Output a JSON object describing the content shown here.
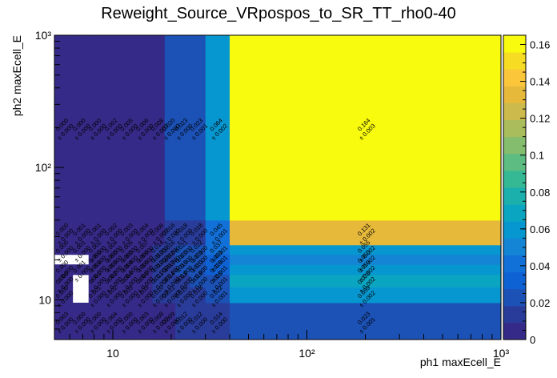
{
  "chart_data": {
    "type": "heatmap",
    "title": "Reweight_Source_VRpospos_to_SR_TT_rho0-40",
    "xlabel": "ph1 maxEcell_E",
    "ylabel": "ph2 maxEcell_E",
    "x_scale": "log",
    "y_scale": "log",
    "xlim": [
      5,
      1000
    ],
    "ylim": [
      5,
      1000
    ],
    "x_ticks": [
      {
        "value": 10,
        "label": "10"
      },
      {
        "value": 100,
        "label": "10²"
      },
      {
        "value": 1000,
        "label": "10³"
      }
    ],
    "y_ticks": [
      {
        "value": 10,
        "label": "10"
      },
      {
        "value": 100,
        "label": "10²"
      },
      {
        "value": 1000,
        "label": "10³"
      }
    ],
    "colorbar": {
      "min": 0,
      "max": 0.165,
      "ticks": [
        "0",
        "0.02",
        "0.04",
        "0.06",
        "0.08",
        "0.1",
        "0.12",
        "0.14",
        "0.16"
      ]
    },
    "x_bins": [
      5,
      6.2,
      7.5,
      9,
      11,
      13,
      16,
      18.5,
      21,
      25,
      30,
      40,
      1000
    ],
    "y_bins": [
      5,
      9.5,
      12.5,
      15.5,
      18.5,
      22,
      26,
      40,
      1000
    ],
    "values": [
      [
        0.003,
        0.0,
        0.0,
        0.004,
        0.0,
        0.003,
        0.008,
        0.009,
        0.012,
        0.012,
        0.014,
        0.023
      ],
      [
        0.0,
        null,
        0.001,
        0.002,
        0.003,
        0.003,
        0.01,
        0.012,
        0.016,
        0.018,
        0.022,
        0.059
      ],
      [
        0.0,
        null,
        0.001,
        0.002,
        0.004,
        0.005,
        0.011,
        0.014,
        0.018,
        0.019,
        0.025,
        0.07
      ],
      [
        0.0,
        0.001,
        0.001,
        0.003,
        0.004,
        0.006,
        0.012,
        0.015,
        0.019,
        0.02,
        0.028,
        0.059
      ],
      [
        null,
        null,
        0.002,
        0.003,
        0.005,
        0.006,
        0.013,
        0.016,
        0.02,
        0.021,
        0.031,
        0.05
      ],
      [
        0.0,
        0.001,
        0.002,
        0.004,
        0.005,
        0.007,
        0.014,
        0.016,
        0.021,
        0.022,
        0.037,
        0.055
      ],
      [
        0.0,
        0.001,
        0.001,
        0.002,
        0.003,
        0.004,
        0.006,
        0.016,
        0.018,
        0.018,
        0.045,
        0.131
      ],
      [
        0.0,
        0.0,
        0.0,
        0.002,
        0.005,
        0.006,
        0.008,
        0.02,
        0.023,
        0.023,
        0.064,
        0.164
      ]
    ],
    "errors": [
      [
        0.0,
        0.0,
        0.0,
        0.0,
        0.0,
        0.0,
        0.0,
        0.0,
        0.0,
        0.0,
        0.0,
        0.001
      ],
      [
        0.0,
        null,
        0.0,
        0.0,
        0.0,
        0.0,
        0.0,
        0.0,
        0.0,
        0.0,
        0.001,
        0.002
      ],
      [
        0.0,
        null,
        0.0,
        0.0,
        0.0,
        0.0,
        0.0,
        0.0,
        0.0,
        0.0,
        0.001,
        0.002
      ],
      [
        0.0,
        0.0,
        0.0,
        0.0,
        0.0,
        0.0,
        0.0,
        0.0,
        0.0,
        0.0,
        0.001,
        0.002
      ],
      [
        null,
        null,
        0.0,
        0.0,
        0.0,
        0.0,
        0.0,
        0.0,
        0.0,
        0.0,
        0.001,
        0.002
      ],
      [
        0.0,
        0.0,
        0.0,
        0.0,
        0.0,
        0.0,
        0.0,
        0.0,
        0.0,
        0.0,
        0.001,
        0.002
      ],
      [
        0.0,
        0.0,
        0.0,
        0.0,
        0.0,
        0.0,
        0.0,
        0.0,
        0.0,
        0.0,
        0.001,
        0.002
      ],
      [
        0.0,
        0.0,
        0.0,
        0.0,
        0.0,
        0.0,
        0.0,
        0.0,
        0.0,
        0.001,
        0.002,
        0.003
      ]
    ],
    "palette": [
      "#352a87",
      "#2a3c9a",
      "#1c51b6",
      "#0f62d4",
      "#1271d8",
      "#1484d4",
      "#0797d0",
      "#0aa5c0",
      "#1bb0ab",
      "#35b994",
      "#5cbc82",
      "#84bd6e",
      "#a9bd5c",
      "#ccbb4c",
      "#e6b93b",
      "#fcc63b",
      "#f6dc22",
      "#f9fb0e"
    ]
  }
}
